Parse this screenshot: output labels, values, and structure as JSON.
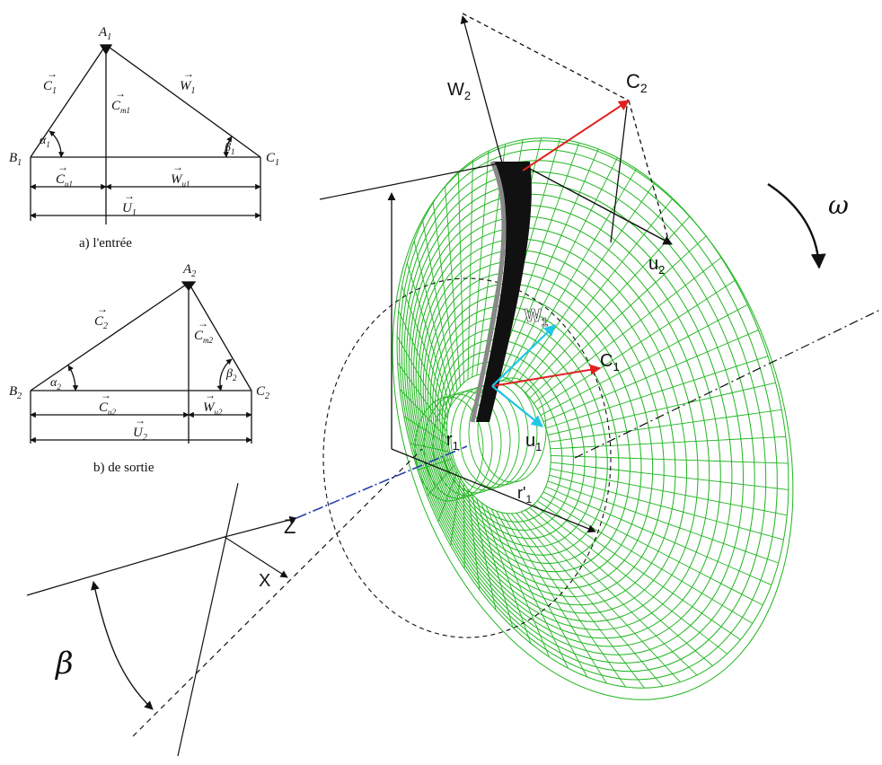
{
  "triangles": {
    "inlet": {
      "caption": "a) l'entrée",
      "labels": {
        "vertex_top": "A",
        "vertex_top_sub": "1",
        "vertex_left": "B",
        "vertex_left_sub": "1",
        "vertex_right": "C",
        "vertex_right_sub": "1",
        "c": "C",
        "c_sub": "1",
        "w": "W",
        "w_sub": "1",
        "cm": "C",
        "cm_sub": "m1",
        "cu": "C",
        "cu_sub": "u1",
        "wu": "W",
        "wu_sub": "u1",
        "u": "U",
        "u_sub": "1",
        "alpha": "α",
        "alpha_sub": "1",
        "beta": "β",
        "beta_sub": "1"
      }
    },
    "outlet": {
      "caption": "b) de sortie",
      "labels": {
        "vertex_top": "A",
        "vertex_top_sub": "2",
        "vertex_left": "B",
        "vertex_left_sub": "2",
        "vertex_right": "C",
        "vertex_right_sub": "2",
        "c": "C",
        "c_sub": "2",
        "cm": "C",
        "cm_sub": "m2",
        "cu": "C",
        "cu_sub": "u2",
        "wu": "W",
        "wu_sub": "u2",
        "u": "U",
        "u_sub": "2",
        "alpha": "α",
        "alpha_sub": "2",
        "beta": "β",
        "beta_sub": "2"
      }
    }
  },
  "impeller": {
    "w2": "W",
    "w2_sub": "2",
    "c2": "C",
    "c2_sub": "2",
    "u2": "u",
    "u2_sub": "2",
    "omega": "ω",
    "w1": "W",
    "w1_sub": "1",
    "c1": "C",
    "c1_sub": "1",
    "u1": "u",
    "u1_sub": "1",
    "r1": "r",
    "r1_sub": "1",
    "r1p": "r'",
    "r1p_sub": "1",
    "z_axis": "Z",
    "x_axis": "X",
    "beta": "β"
  },
  "colors": {
    "mesh": "#1fb51f",
    "blade": "#111111",
    "c_vector": "#e02020",
    "w_u_vector": "#22c6e6",
    "z_axis": "#2a3fb0"
  }
}
